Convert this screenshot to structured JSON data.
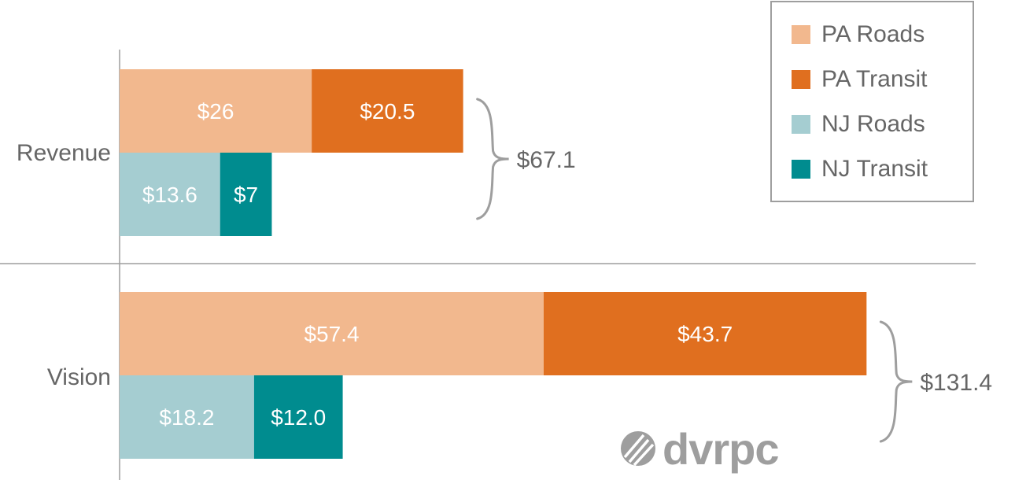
{
  "chart_data": {
    "type": "bar",
    "orientation": "horizontal",
    "stacked": true,
    "categories": [
      "Revenue",
      "Vision"
    ],
    "series": [
      {
        "name": "PA Roads",
        "color": "#f2b88e",
        "values": [
          26,
          57.4
        ],
        "labels": [
          "$26",
          "$57.4"
        ],
        "row": "PA"
      },
      {
        "name": "PA Transit",
        "color": "#e06f1f",
        "values": [
          20.5,
          43.7
        ],
        "labels": [
          "$20.5",
          "$43.7"
        ],
        "row": "PA"
      },
      {
        "name": "NJ Roads",
        "color": "#a5cdd1",
        "values": [
          13.6,
          18.2
        ],
        "labels": [
          "$13.6",
          "$18.2"
        ],
        "row": "NJ"
      },
      {
        "name": "NJ Transit",
        "color": "#008c8f",
        "values": [
          7,
          12.0
        ],
        "labels": [
          "$7",
          "$12.0"
        ],
        "row": "NJ"
      }
    ],
    "totals": [
      "$67.1",
      "$131.4"
    ],
    "legend_position": "top-right",
    "grid": false
  },
  "logo": {
    "text": "dvrpc",
    "icon": "dvrpc-mark-icon"
  }
}
